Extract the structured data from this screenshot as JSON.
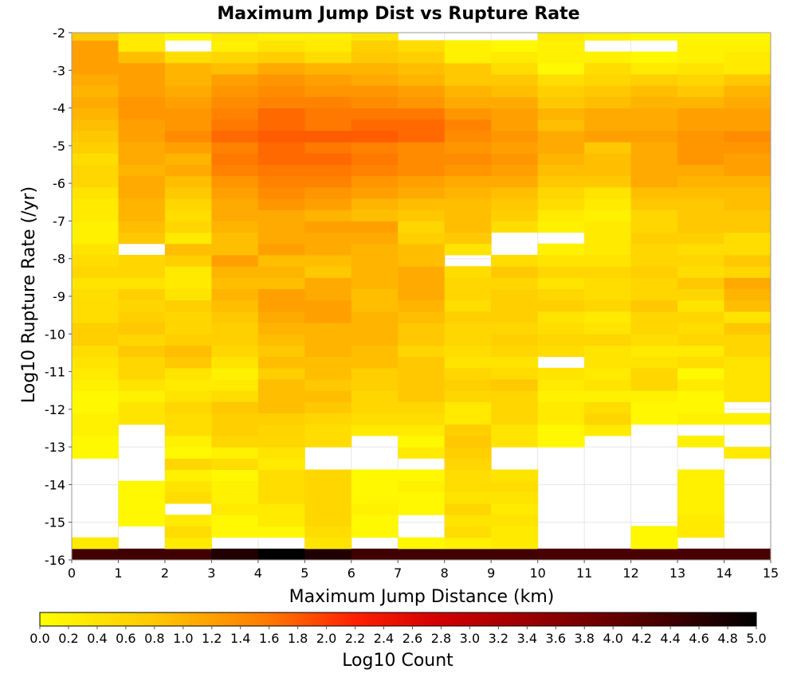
{
  "chart_data": {
    "type": "heatmap",
    "title": "Maximum Jump Dist vs Rupture Rate",
    "xlabel": "Maximum Jump Distance (km)",
    "ylabel": "Log10 Rupture Rate (/yr)",
    "xlim": [
      0,
      15
    ],
    "ylim": [
      -16,
      -2
    ],
    "x_ticks": [
      "0",
      "1",
      "2",
      "3",
      "4",
      "5",
      "6",
      "7",
      "8",
      "9",
      "10",
      "11",
      "12",
      "13",
      "14",
      "15"
    ],
    "y_ticks": [
      "-2",
      "-3",
      "-4",
      "-5",
      "-6",
      "-7",
      "-8",
      "-9",
      "-10",
      "-11",
      "-12",
      "-13",
      "-14",
      "-15",
      "-16"
    ],
    "x_bin_width": 1,
    "y_bin_height": 0.3,
    "y_bin_start": -16,
    "colorbar": {
      "label": "Log10 Count",
      "min": 0,
      "max": 5,
      "ticks": [
        "0.0",
        "0.2",
        "0.4",
        "0.6",
        "0.8",
        "1.0",
        "1.2",
        "1.4",
        "1.6",
        "1.8",
        "2.0",
        "2.2",
        "2.4",
        "2.6",
        "2.8",
        "3.0",
        "3.2",
        "3.4",
        "3.6",
        "3.8",
        "4.0",
        "4.2",
        "4.4",
        "4.6",
        "4.8",
        "5.0"
      ],
      "stops": [
        {
          "v": 0.0,
          "c": "#ffff00"
        },
        {
          "v": 0.8,
          "c": "#ffc800"
        },
        {
          "v": 1.6,
          "c": "#ff7800"
        },
        {
          "v": 2.2,
          "c": "#ff2000"
        },
        {
          "v": 2.8,
          "c": "#d00000"
        },
        {
          "v": 3.6,
          "c": "#8a0000"
        },
        {
          "v": 4.4,
          "c": "#400000"
        },
        {
          "v": 5.0,
          "c": "#000000"
        }
      ]
    },
    "cell_values": [
      [
        4.4,
        0.3,
        null,
        null,
        null,
        null,
        null,
        null,
        null,
        0.1,
        0.1,
        0.2,
        0.2,
        0.1,
        0.1,
        0.2,
        0.3,
        0.4,
        0.5,
        0.7,
        0.7,
        0.5,
        0.5,
        0.5,
        0.4,
        0.6,
        0.5,
        0.4,
        0.2,
        0.2,
        0.3,
        0.3,
        0.4,
        0.6,
        0.6,
        0.5,
        0.7,
        0.8,
        0.9,
        1.0,
        1.1,
        1.0,
        1.1,
        1.2,
        1.2,
        1.2,
        0.8
      ],
      [
        4.4,
        null,
        null,
        0.1,
        0.1,
        0.1,
        0.1,
        null,
        null,
        null,
        null,
        null,
        0.4,
        0.4,
        0.2,
        0.4,
        0.6,
        0.6,
        0.8,
        0.6,
        0.8,
        0.7,
        0.6,
        0.7,
        0.4,
        0.6,
        0.6,
        null,
        0.8,
        0.9,
        1.0,
        1.0,
        1.1,
        1.1,
        1.0,
        1.1,
        1.1,
        1.2,
        1.2,
        1.3,
        1.3,
        1.2,
        1.2,
        1.2,
        0.9,
        0.3,
        0.3
      ],
      [
        4.4,
        0.3,
        0.5,
        0.3,
        null,
        0.5,
        0.4,
        0.2,
        0.6,
        0.1,
        0.2,
        0.5,
        0.5,
        0.6,
        0.4,
        0.3,
        0.4,
        0.8,
        0.9,
        0.7,
        0.6,
        0.6,
        0.7,
        0.4,
        0.3,
        0.3,
        0.7,
        0.9,
        0.3,
        0.6,
        0.5,
        0.6,
        0.8,
        0.9,
        1.1,
        1.0,
        1.2,
        1.4,
        1.3,
        1.3,
        1.2,
        1.1,
        1.0,
        1.0,
        0.5,
        null,
        0.1
      ],
      [
        4.7,
        null,
        0.1,
        0.1,
        0.3,
        0.2,
        0.2,
        0.1,
        0.5,
        0.2,
        0.6,
        0.7,
        0.7,
        0.8,
        0.5,
        0.3,
        0.2,
        0.4,
        0.6,
        0.7,
        0.7,
        0.8,
        0.9,
        1.0,
        0.9,
        1.0,
        1.2,
        0.9,
        0.9,
        1.0,
        1.1,
        1.1,
        1.2,
        1.3,
        1.5,
        1.6,
        1.5,
        1.7,
        1.6,
        1.5,
        1.4,
        1.3,
        1.2,
        0.9,
        0.6,
        0.2,
        0.3
      ],
      [
        5.0,
        null,
        0.1,
        0.3,
        0.3,
        0.5,
        0.5,
        0.5,
        0.3,
        0.4,
        0.6,
        0.6,
        0.7,
        0.9,
        0.9,
        0.9,
        0.7,
        0.9,
        0.8,
        0.9,
        1.0,
        1.1,
        1.2,
        1.2,
        0.9,
        1.0,
        0.9,
        1.2,
        1.1,
        1.1,
        1.1,
        1.3,
        1.4,
        1.5,
        1.6,
        1.7,
        1.7,
        1.8,
        1.7,
        1.7,
        1.5,
        1.4,
        1.3,
        1.1,
        0.7,
        0.4,
        0.2
      ],
      [
        4.7,
        0.4,
        0.5,
        0.6,
        0.6,
        0.6,
        0.6,
        0.6,
        null,
        null,
        0.5,
        0.5,
        0.6,
        0.8,
        0.9,
        0.8,
        0.9,
        0.9,
        1.0,
        1.0,
        1.0,
        1.2,
        1.2,
        1.1,
        1.1,
        0.8,
        0.9,
        1.1,
        1.1,
        1.2,
        1.0,
        1.2,
        1.3,
        1.5,
        1.6,
        1.7,
        1.6,
        1.8,
        1.6,
        1.6,
        1.5,
        1.3,
        1.2,
        1.0,
        0.5,
        0.3,
        0.2
      ],
      [
        4.4,
        null,
        0.1,
        0.1,
        0.2,
        0.1,
        0.1,
        0.1,
        null,
        null,
        null,
        0.3,
        0.5,
        0.6,
        0.6,
        0.7,
        0.7,
        0.9,
        0.9,
        1.0,
        1.0,
        1.0,
        0.9,
        0.9,
        1.0,
        1.0,
        1.0,
        1.0,
        1.1,
        1.2,
        0.9,
        1.0,
        1.2,
        1.3,
        1.5,
        1.6,
        1.5,
        1.8,
        1.7,
        1.6,
        1.4,
        1.3,
        1.1,
        1.0,
        0.8,
        0.7,
        0.4
      ],
      [
        4.4,
        0.1,
        null,
        null,
        0.1,
        0.1,
        0.2,
        0.1,
        null,
        0.3,
        0.1,
        0.3,
        0.5,
        0.6,
        0.8,
        0.8,
        0.8,
        0.8,
        0.6,
        0.8,
        0.8,
        0.9,
        1.0,
        1.1,
        1.1,
        1.1,
        0.9,
        0.9,
        0.7,
        0.6,
        0.8,
        0.9,
        1.1,
        1.2,
        1.4,
        1.4,
        1.4,
        1.7,
        1.7,
        1.6,
        1.3,
        1.2,
        1.0,
        0.9,
        0.7,
        0.5,
        null
      ],
      [
        4.4,
        0.2,
        0.5,
        0.4,
        0.6,
        0.4,
        0.5,
        0.5,
        0.6,
        0.7,
        0.8,
        0.7,
        0.3,
        0.3,
        0.6,
        0.7,
        0.6,
        0.4,
        0.5,
        0.6,
        0.6,
        0.7,
        0.5,
        0.6,
        0.6,
        0.5,
        null,
        0.4,
        0.8,
        0.9,
        0.9,
        0.9,
        1.0,
        1.1,
        1.3,
        1.4,
        1.3,
        1.4,
        1.5,
        1.3,
        1.1,
        1.0,
        0.8,
        0.8,
        0.2,
        0.2,
        null
      ],
      [
        4.4,
        0.3,
        0.3,
        0.4,
        0.3,
        0.4,
        0.5,
        0.4,
        null,
        null,
        0.4,
        0.4,
        0.6,
        0.6,
        0.6,
        0.8,
        0.5,
        0.4,
        0.6,
        0.7,
        0.6,
        0.7,
        0.7,
        0.7,
        0.6,
        0.8,
        0.5,
        null,
        null,
        0.5,
        0.7,
        0.8,
        0.9,
        1.1,
        1.2,
        1.3,
        1.2,
        1.3,
        1.2,
        1.2,
        1.1,
        0.9,
        0.8,
        0.5,
        0.3,
        0.1,
        null
      ],
      [
        4.3,
        null,
        null,
        null,
        null,
        null,
        null,
        null,
        null,
        null,
        0.1,
        0.1,
        0.3,
        0.3,
        0.2,
        0.3,
        0.4,
        null,
        0.5,
        0.6,
        0.5,
        0.4,
        0.7,
        0.6,
        0.4,
        0.6,
        0.4,
        0.2,
        null,
        0.2,
        0.3,
        0.5,
        0.6,
        0.8,
        0.9,
        1.0,
        1.1,
        1.1,
        0.9,
        1.0,
        0.8,
        0.7,
        0.5,
        0.1,
        0.2,
        0.2,
        0.3
      ],
      [
        4.3,
        null,
        null,
        null,
        null,
        null,
        null,
        null,
        null,
        null,
        null,
        0.3,
        0.6,
        0.5,
        0.2,
        0.4,
        0.3,
        0.4,
        0.4,
        0.6,
        0.4,
        0.3,
        0.6,
        0.5,
        0.5,
        0.6,
        0.4,
        0.3,
        0.3,
        0.3,
        0.2,
        0.3,
        0.4,
        0.8,
        0.9,
        0.9,
        0.8,
        1.2,
        1.1,
        1.1,
        0.9,
        0.8,
        0.6,
        0.5,
        0.2,
        null,
        0.2
      ],
      [
        4.3,
        0.1,
        0.1,
        null,
        null,
        null,
        null,
        null,
        null,
        null,
        null,
        null,
        0.1,
        0.1,
        0.2,
        0.6,
        0.6,
        0.4,
        0.3,
        0.5,
        0.6,
        0.6,
        0.8,
        0.6,
        0.6,
        0.7,
        0.6,
        0.6,
        0.7,
        0.6,
        0.6,
        0.8,
        0.9,
        1.1,
        1.1,
        1.1,
        1.1,
        1.2,
        1.1,
        1.1,
        1.0,
        0.9,
        0.7,
        0.3,
        0.1,
        null,
        0.1
      ],
      [
        4.3,
        null,
        0.3,
        0.3,
        0.2,
        0.2,
        0.2,
        0.2,
        null,
        null,
        0.2,
        null,
        0.2,
        0.1,
        0.1,
        0.3,
        0.1,
        0.5,
        0.3,
        0.6,
        0.5,
        0.6,
        0.4,
        0.6,
        0.8,
        0.5,
        0.6,
        0.5,
        0.7,
        0.8,
        0.8,
        0.8,
        0.9,
        1.0,
        1.1,
        1.3,
        1.3,
        1.3,
        1.2,
        1.2,
        1.0,
        0.8,
        0.6,
        0.4,
        0.2,
        0.2,
        0.1
      ],
      [
        4.3,
        null,
        null,
        null,
        null,
        null,
        null,
        null,
        null,
        0.3,
        null,
        null,
        0.2,
        null,
        0.4,
        0.4,
        0.4,
        0.4,
        0.6,
        0.6,
        0.8,
        0.4,
        0.9,
        1.0,
        1.1,
        0.6,
        0.8,
        0.5,
        0.5,
        0.8,
        0.8,
        0.9,
        0.9,
        1.0,
        1.2,
        1.2,
        1.3,
        1.4,
        1.2,
        1.2,
        1.1,
        1.0,
        0.8,
        0.3,
        0.3,
        0.2,
        0.1
      ]
    ]
  }
}
